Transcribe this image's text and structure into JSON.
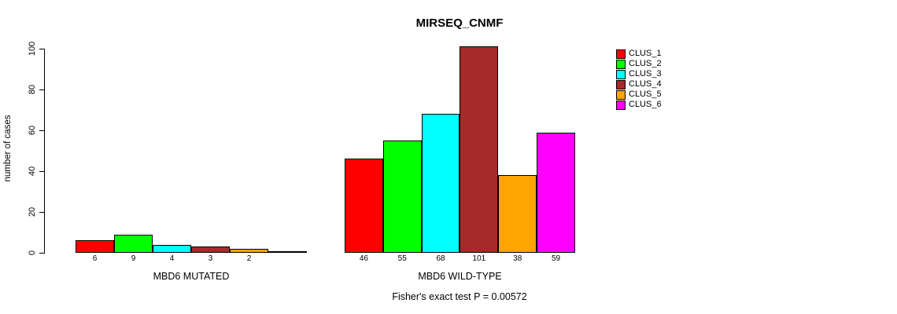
{
  "chart_data": {
    "type": "bar",
    "title": "MIRSEQ_CNMF",
    "ylabel": "number of cases",
    "ylim": [
      0,
      100
    ],
    "yticks": [
      0,
      20,
      40,
      60,
      80,
      100
    ],
    "grid": false,
    "legend_position": "right",
    "clusters": [
      {
        "name": "CLUS_1",
        "color": "#ff0000"
      },
      {
        "name": "CLUS_2",
        "color": "#00ff00"
      },
      {
        "name": "CLUS_3",
        "color": "#00ffff"
      },
      {
        "name": "CLUS_4",
        "color": "#a52a2a"
      },
      {
        "name": "CLUS_5",
        "color": "#ffa500"
      },
      {
        "name": "CLUS_6",
        "color": "#ff00ff"
      }
    ],
    "groups": [
      {
        "label": "MBD6 MUTATED",
        "values": [
          6,
          9,
          4,
          3,
          2,
          0
        ]
      },
      {
        "label": "MBD6 WILD-TYPE",
        "values": [
          46,
          55,
          68,
          101,
          38,
          59
        ]
      }
    ],
    "annotation": "Fisher's exact test P = 0.00572"
  }
}
